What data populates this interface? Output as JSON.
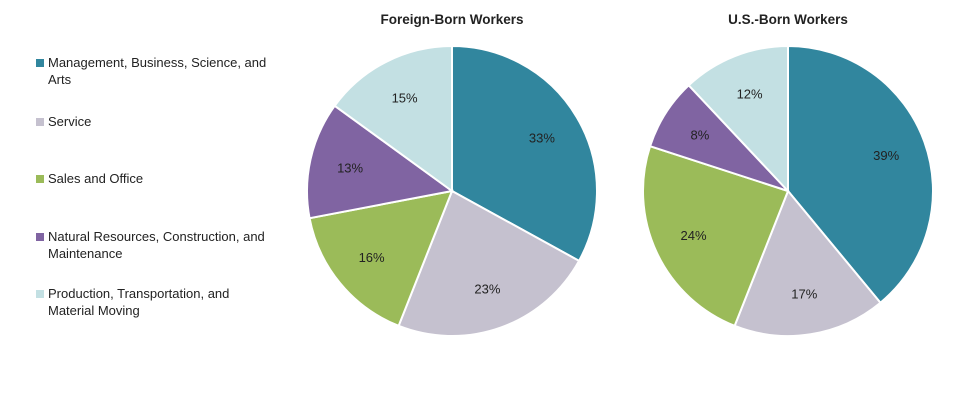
{
  "legend": [
    {
      "label": "Management, Business, Science, and Arts",
      "color": "#31869e"
    },
    {
      "label": "Service",
      "color": "#c5c1cf"
    },
    {
      "label": "Sales and Office",
      "color": "#9bbb59"
    },
    {
      "label": "Natural Resources, Construction, and Maintenance",
      "color": "#8064a2"
    },
    {
      "label": "Production, Transportation, and Material Moving",
      "color": "#c3e0e3"
    }
  ],
  "chart_data": [
    {
      "type": "pie",
      "title": "Foreign-Born Workers",
      "categories": [
        "Management, Business, Science, and Arts",
        "Service",
        "Sales and Office",
        "Natural Resources, Construction, and Maintenance",
        "Production, Transportation, and Material Moving"
      ],
      "values": [
        33,
        23,
        16,
        13,
        15
      ],
      "labels": [
        "33%",
        "23%",
        "16%",
        "13%",
        "15%"
      ],
      "colors": [
        "#31869e",
        "#c5c1cf",
        "#9bbb59",
        "#8064a2",
        "#c3e0e3"
      ],
      "legend_position": "left"
    },
    {
      "type": "pie",
      "title": "U.S.-Born Workers",
      "categories": [
        "Management, Business, Science, and Arts",
        "Service",
        "Sales and Office",
        "Natural Resources, Construction, and Maintenance",
        "Production, Transportation, and Material Moving"
      ],
      "values": [
        39,
        17,
        24,
        8,
        12
      ],
      "labels": [
        "39%",
        "17%",
        "24%",
        "8%",
        "12%"
      ],
      "colors": [
        "#31869e",
        "#c5c1cf",
        "#9bbb59",
        "#8064a2",
        "#c3e0e3"
      ],
      "legend_position": "left"
    }
  ]
}
